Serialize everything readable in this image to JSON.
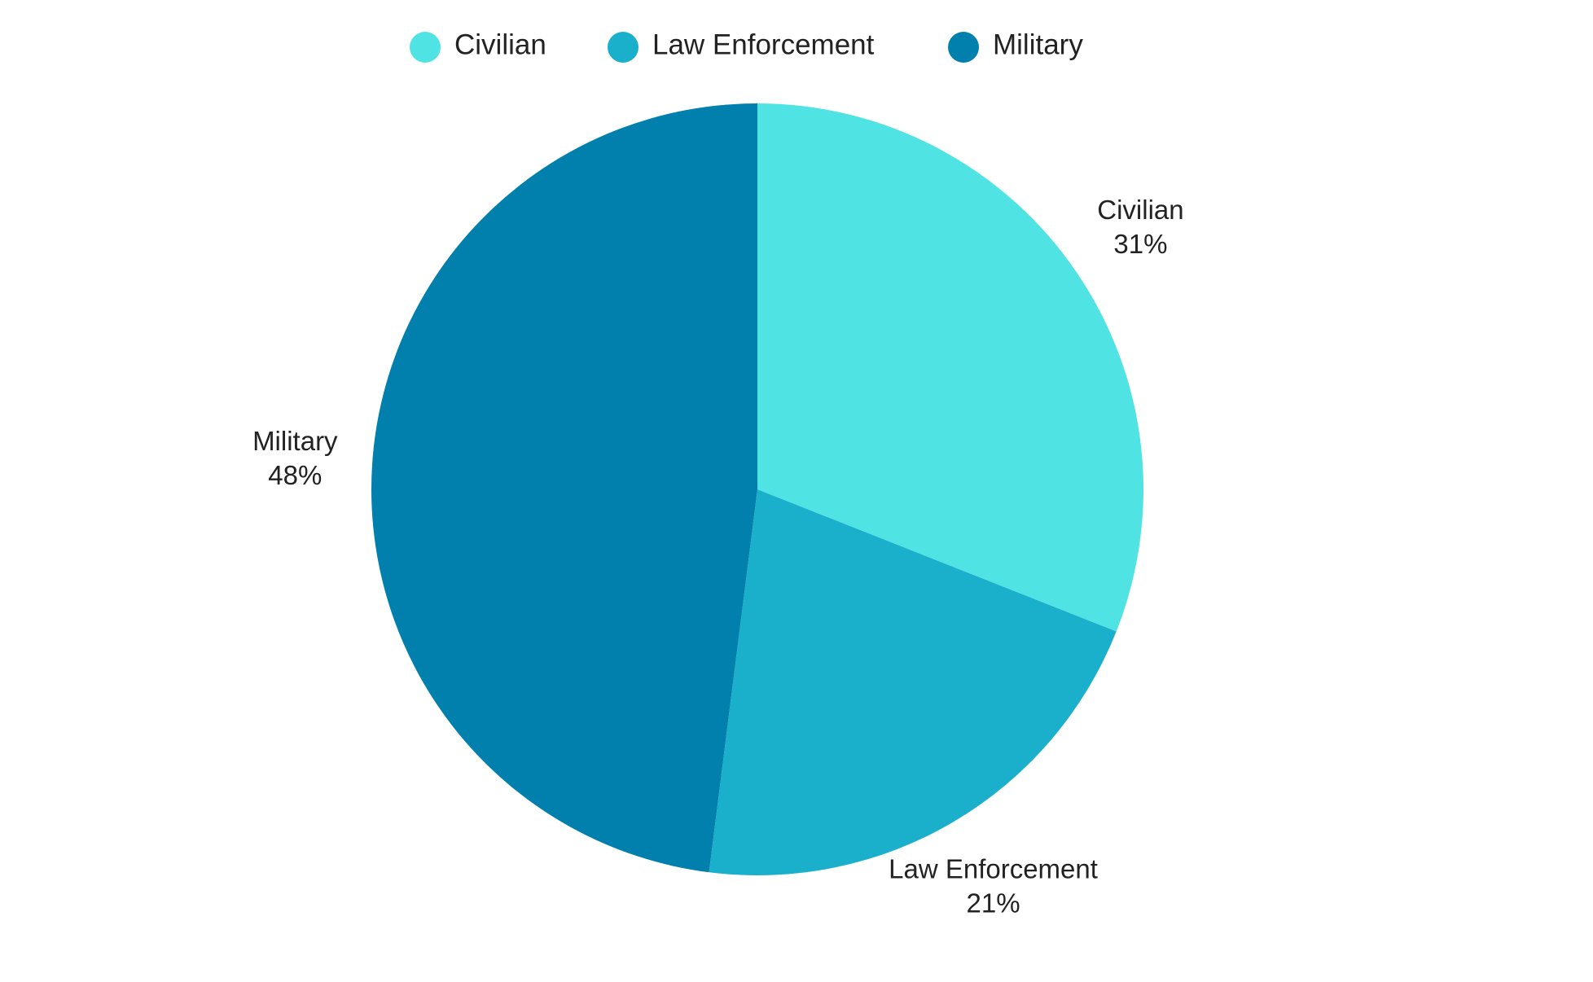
{
  "chart_data": {
    "type": "pie",
    "categories": [
      "Civilian",
      "Law Enforcement",
      "Military"
    ],
    "values": [
      31,
      21,
      48
    ],
    "value_labels": [
      "31%",
      "21%",
      "48%"
    ],
    "colors": [
      "#50e3e4",
      "#1ab0cc",
      "#0180ad"
    ],
    "legend": "top"
  }
}
